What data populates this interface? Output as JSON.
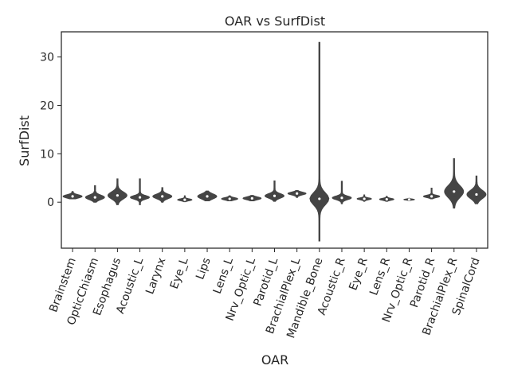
{
  "chart_data": {
    "type": "violin",
    "title": "OAR vs SurfDist",
    "xlabel": "OAR",
    "ylabel": "SurfDist",
    "ylim": [
      -9.5,
      35.2
    ],
    "yticks": [
      0,
      10,
      20,
      30
    ],
    "grid": false,
    "legend": "none",
    "color": "#454545",
    "categories": [
      "Brainstem",
      "OpticChiasm",
      "Esophagus",
      "Acoustic_L",
      "Larynx",
      "Eye_L",
      "Lips",
      "Lens_L",
      "Nrv_Optic_L",
      "Parotid_L",
      "BrachialPlex_L",
      "Mandible_Bone",
      "Acoustic_R",
      "Eye_R",
      "Lens_R",
      "Nrv_Optic_R",
      "Parotid_R",
      "BrachialPlex_R",
      "SpinalCord"
    ],
    "series": [
      {
        "min": 0.7,
        "q1": 0.9,
        "median": 1.2,
        "q3": 1.6,
        "max": 2.2
      },
      {
        "min": 0.0,
        "q1": 0.6,
        "median": 1.0,
        "q3": 1.6,
        "max": 3.4
      },
      {
        "min": -0.5,
        "q1": 0.8,
        "median": 1.4,
        "q3": 2.4,
        "max": 4.8
      },
      {
        "min": -0.5,
        "q1": 0.6,
        "median": 1.0,
        "q3": 1.4,
        "max": 4.8
      },
      {
        "min": 0.0,
        "q1": 0.8,
        "median": 1.2,
        "q3": 1.8,
        "max": 3.0
      },
      {
        "min": 0.1,
        "q1": 0.3,
        "median": 0.5,
        "q3": 0.7,
        "max": 1.3
      },
      {
        "min": 0.3,
        "q1": 0.7,
        "median": 1.2,
        "q3": 1.8,
        "max": 2.3
      },
      {
        "min": 0.3,
        "q1": 0.5,
        "median": 0.7,
        "q3": 1.0,
        "max": 1.3
      },
      {
        "min": 0.3,
        "q1": 0.5,
        "median": 0.8,
        "q3": 1.1,
        "max": 1.4
      },
      {
        "min": 0.2,
        "q1": 0.9,
        "median": 1.3,
        "q3": 1.9,
        "max": 4.4
      },
      {
        "min": 1.0,
        "q1": 1.5,
        "median": 1.8,
        "q3": 2.1,
        "max": 2.4
      },
      {
        "min": -8.0,
        "q1": 0.4,
        "median": 0.7,
        "q3": 1.1,
        "max": 33.0
      },
      {
        "min": -0.3,
        "q1": 0.6,
        "median": 0.9,
        "q3": 1.4,
        "max": 4.3
      },
      {
        "min": 0.2,
        "q1": 0.5,
        "median": 0.7,
        "q3": 0.9,
        "max": 1.5
      },
      {
        "min": 0.2,
        "q1": 0.4,
        "median": 0.6,
        "q3": 0.8,
        "max": 1.2
      },
      {
        "min": 0.3,
        "q1": 0.45,
        "median": 0.55,
        "q3": 0.65,
        "max": 0.8
      },
      {
        "min": 0.7,
        "q1": 1.0,
        "median": 1.2,
        "q3": 1.5,
        "max": 2.9
      },
      {
        "min": -1.2,
        "q1": 1.3,
        "median": 2.2,
        "q3": 4.0,
        "max": 9.0
      },
      {
        "min": -0.3,
        "q1": 0.9,
        "median": 1.6,
        "q3": 2.8,
        "max": 5.4
      }
    ]
  }
}
